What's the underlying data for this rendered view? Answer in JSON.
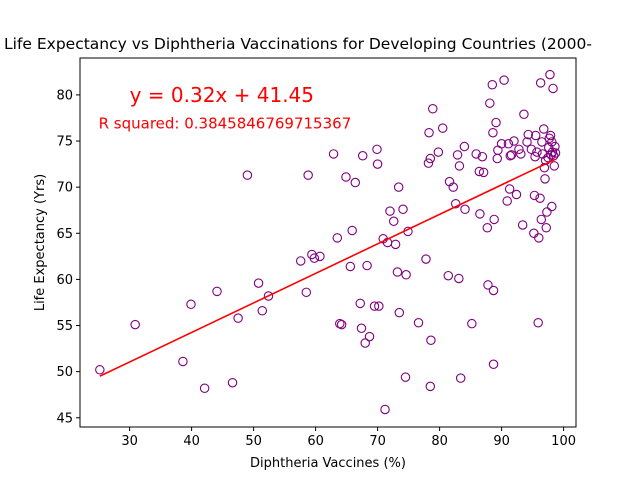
{
  "chart_data": {
    "type": "scatter",
    "title": "Life Expectancy vs Diphtheria Vaccinations for Developing Countries (2000-",
    "xlabel": "Diphtheria Vaccines (%)",
    "ylabel": "Life Expectancy (Yrs)",
    "xlim": [
      22,
      102
    ],
    "ylim": [
      44,
      84
    ],
    "xticks": [
      30,
      40,
      50,
      60,
      70,
      80,
      90,
      100
    ],
    "yticks": [
      45,
      50,
      55,
      60,
      65,
      70,
      75,
      80
    ],
    "grid": false,
    "series": [
      {
        "marker": "open-circle",
        "color": "#800080",
        "points": [
          [
            25.2,
            50.2
          ],
          [
            30.9,
            55.1
          ],
          [
            38.6,
            51.1
          ],
          [
            39.9,
            57.3
          ],
          [
            42.1,
            48.2
          ],
          [
            44.1,
            58.7
          ],
          [
            46.6,
            48.8
          ],
          [
            47.5,
            55.8
          ],
          [
            49.0,
            71.3
          ],
          [
            50.8,
            59.6
          ],
          [
            51.4,
            56.6
          ],
          [
            52.4,
            58.2
          ],
          [
            57.6,
            62.0
          ],
          [
            58.5,
            58.6
          ],
          [
            58.8,
            71.3
          ],
          [
            59.4,
            62.7
          ],
          [
            59.8,
            62.3
          ],
          [
            60.7,
            62.5
          ],
          [
            62.9,
            73.6
          ],
          [
            63.5,
            64.5
          ],
          [
            63.9,
            55.2
          ],
          [
            64.2,
            55.1
          ],
          [
            64.9,
            71.1
          ],
          [
            65.6,
            61.4
          ],
          [
            65.9,
            65.3
          ],
          [
            66.4,
            70.5
          ],
          [
            67.2,
            57.4
          ],
          [
            67.4,
            54.7
          ],
          [
            67.6,
            73.4
          ],
          [
            68.0,
            53.1
          ],
          [
            68.3,
            61.5
          ],
          [
            68.7,
            53.8
          ],
          [
            69.5,
            57.1
          ],
          [
            69.9,
            74.1
          ],
          [
            70.0,
            72.5
          ],
          [
            70.2,
            57.1
          ],
          [
            70.9,
            64.4
          ],
          [
            71.2,
            45.9
          ],
          [
            71.6,
            64.0
          ],
          [
            72.0,
            67.4
          ],
          [
            72.6,
            66.3
          ],
          [
            72.9,
            63.8
          ],
          [
            73.2,
            60.8
          ],
          [
            73.4,
            70.0
          ],
          [
            73.5,
            56.4
          ],
          [
            74.1,
            67.6
          ],
          [
            74.5,
            49.4
          ],
          [
            74.6,
            60.5
          ],
          [
            74.9,
            65.2
          ],
          [
            76.6,
            55.3
          ],
          [
            77.8,
            62.2
          ],
          [
            78.2,
            72.6
          ],
          [
            78.3,
            75.9
          ],
          [
            78.5,
            73.1
          ],
          [
            78.5,
            48.4
          ],
          [
            78.6,
            53.4
          ],
          [
            78.9,
            78.5
          ],
          [
            79.8,
            73.8
          ],
          [
            80.5,
            76.4
          ],
          [
            81.4,
            60.4
          ],
          [
            81.6,
            70.6
          ],
          [
            82.2,
            70.0
          ],
          [
            82.6,
            68.2
          ],
          [
            82.9,
            73.5
          ],
          [
            83.1,
            60.1
          ],
          [
            83.2,
            72.3
          ],
          [
            83.4,
            49.3
          ],
          [
            84.0,
            74.4
          ],
          [
            84.1,
            67.6
          ],
          [
            85.2,
            55.2
          ],
          [
            85.9,
            73.6
          ],
          [
            86.4,
            71.7
          ],
          [
            86.5,
            67.1
          ],
          [
            86.9,
            73.3
          ],
          [
            87.1,
            71.6
          ],
          [
            87.7,
            65.6
          ],
          [
            87.8,
            59.4
          ],
          [
            88.1,
            79.1
          ],
          [
            88.5,
            81.1
          ],
          [
            88.6,
            75.9
          ],
          [
            88.7,
            58.8
          ],
          [
            88.7,
            50.8
          ],
          [
            88.8,
            66.5
          ],
          [
            89.1,
            77.0
          ],
          [
            89.3,
            73.1
          ],
          [
            89.4,
            74.0
          ],
          [
            90.0,
            74.7
          ],
          [
            90.4,
            81.6
          ],
          [
            90.9,
            68.5
          ],
          [
            91.1,
            74.7
          ],
          [
            91.3,
            69.8
          ],
          [
            91.4,
            73.4
          ],
          [
            91.6,
            73.5
          ],
          [
            92.0,
            75.0
          ],
          [
            92.4,
            69.2
          ],
          [
            92.8,
            74.1
          ],
          [
            93.1,
            73.6
          ],
          [
            93.4,
            65.9
          ],
          [
            93.6,
            77.9
          ],
          [
            94.1,
            74.9
          ],
          [
            94.3,
            75.7
          ],
          [
            94.8,
            74.1
          ],
          [
            95.2,
            65.0
          ],
          [
            95.3,
            69.1
          ],
          [
            95.4,
            73.3
          ],
          [
            95.5,
            75.6
          ],
          [
            95.7,
            73.8
          ],
          [
            95.9,
            55.3
          ],
          [
            96.0,
            64.5
          ],
          [
            96.2,
            68.8
          ],
          [
            96.3,
            81.3
          ],
          [
            96.4,
            66.5
          ],
          [
            96.5,
            74.9
          ],
          [
            96.6,
            73.6
          ],
          [
            96.8,
            76.3
          ],
          [
            96.9,
            72.1
          ],
          [
            97.0,
            70.9
          ],
          [
            97.1,
            72.9
          ],
          [
            97.2,
            65.6
          ],
          [
            97.3,
            67.3
          ],
          [
            97.5,
            73.2
          ],
          [
            97.6,
            74.3
          ],
          [
            97.7,
            75.3
          ],
          [
            97.8,
            82.2
          ],
          [
            97.9,
            75.6
          ],
          [
            98.0,
            73.5
          ],
          [
            98.1,
            74.9
          ],
          [
            98.1,
            67.9
          ],
          [
            98.2,
            73.8
          ],
          [
            98.3,
            80.7
          ],
          [
            98.4,
            73.4
          ],
          [
            98.5,
            72.3
          ],
          [
            98.6,
            74.4
          ],
          [
            98.7,
            73.7
          ]
        ]
      }
    ],
    "regression": {
      "slope": 0.32,
      "intercept": 41.45,
      "x_range": [
        25.2,
        98.7
      ],
      "color": "#ff0000"
    },
    "annotations": {
      "equation": "y = 0.32x + 41.45",
      "r_squared": "R squared: 0.3845846769715367",
      "color": "#ff0000"
    }
  }
}
